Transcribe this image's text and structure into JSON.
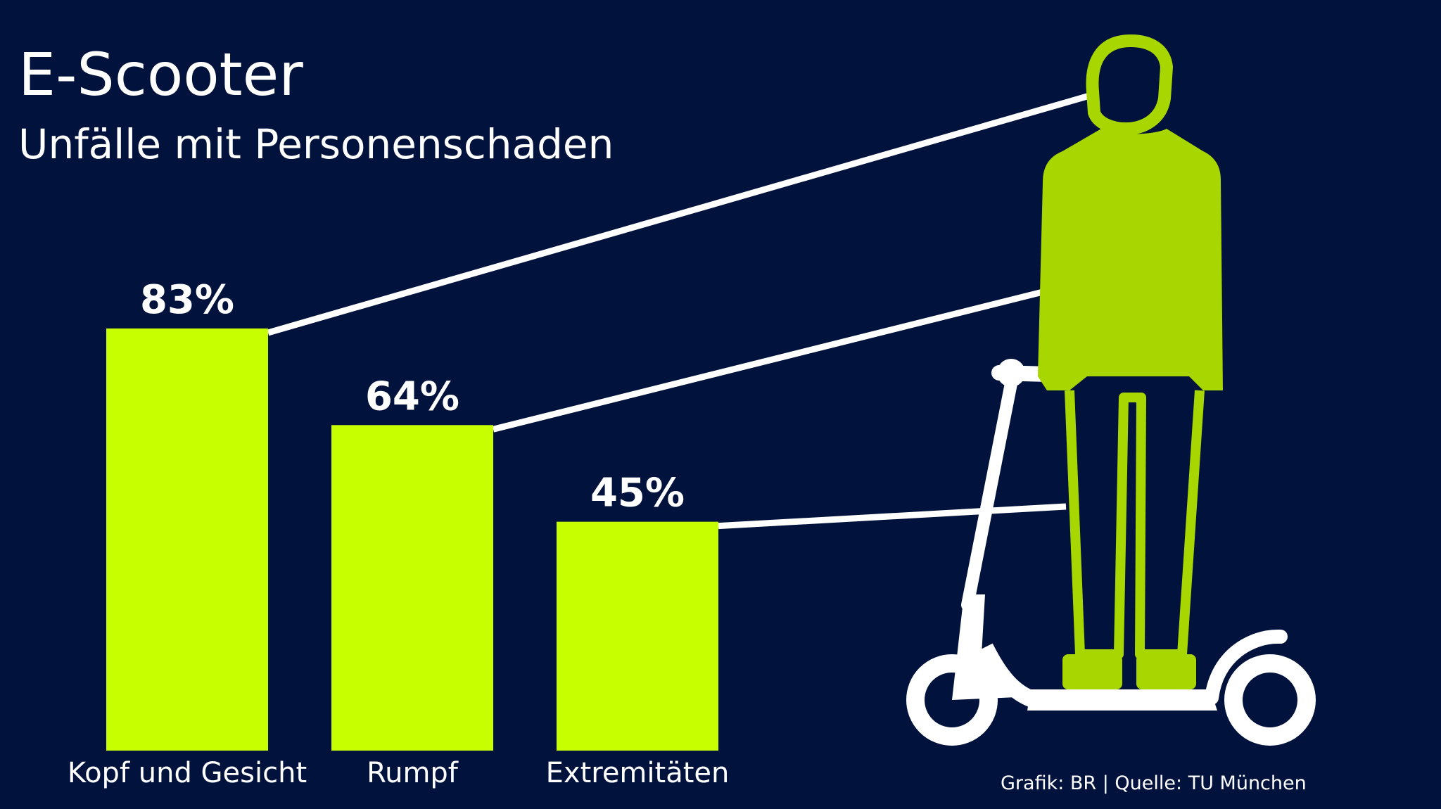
{
  "colors": {
    "background": "#01123d",
    "bar": "#c8ff00",
    "figure": "#a8d600",
    "scooter": "#ffffff",
    "text": "#ffffff",
    "connector": "#ffffff"
  },
  "source_text": "Grafik: BR | Quelle: TU München",
  "chart_data": {
    "type": "bar",
    "title": "E-Scooter",
    "subtitle": "Unfälle mit Personenschaden",
    "categories": [
      "Kopf und Gesicht",
      "Rumpf",
      "Extremitäten"
    ],
    "values": [
      83,
      64,
      45
    ],
    "value_labels": [
      "83%",
      "64%",
      "45%"
    ],
    "unit": "%",
    "xlabel": "",
    "ylabel": "",
    "ylim": [
      0,
      100
    ],
    "grid": false,
    "legend": "none"
  },
  "illustration": {
    "figure_icon": "person-on-e-scooter-icon"
  }
}
